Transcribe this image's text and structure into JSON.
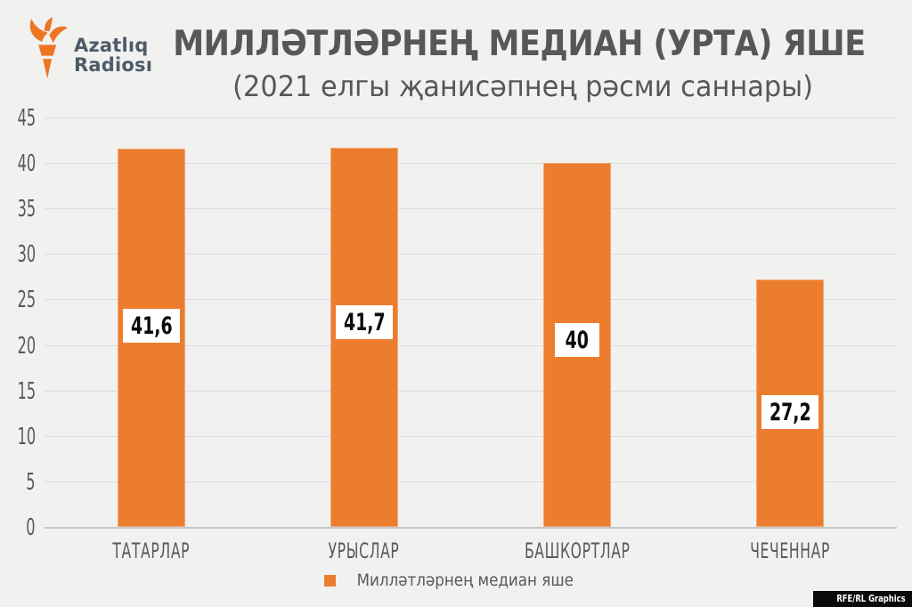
{
  "brand": {
    "name_line1": "Azatlıq",
    "name_line2": "Radiosı",
    "logo_color": "#EE7623",
    "text_color": "#4D5B68"
  },
  "chart_data": {
    "type": "bar",
    "title": "МИЛЛӘТЛӘРНЕҢ МЕДИАН (УРТА) ЯШЕ",
    "subtitle": "(2021 елгы җанисәпнең рәсми саннары)",
    "categories": [
      "ТАТАРЛАР",
      "УРЫСЛАР",
      "БАШКОРТЛАР",
      "ЧЕЧЕННАР"
    ],
    "values": [
      41.6,
      41.7,
      40,
      27.2
    ],
    "value_labels": [
      "41,6",
      "41,7",
      "40",
      "27,2"
    ],
    "ylim": [
      0,
      45
    ],
    "yticks": [
      0,
      5,
      10,
      15,
      20,
      25,
      30,
      35,
      40,
      45
    ],
    "grid": true,
    "bar_color": "#EC7D2F",
    "legend": {
      "label": "Милләтләрнең медиан яше",
      "position": "bottom",
      "swatch_color": "#EC7D2F"
    }
  },
  "credit": "RFE/RL Graphics",
  "colors": {
    "background": "#F1F1F0",
    "grid": "#DCDCDD",
    "baseline": "#C6C6C7",
    "axis_text": "#595959",
    "title_text": "#57575A",
    "value_text": "#0B0B0B",
    "credit_bg": "#0A0A0A",
    "credit_text": "#FFFFFF"
  }
}
